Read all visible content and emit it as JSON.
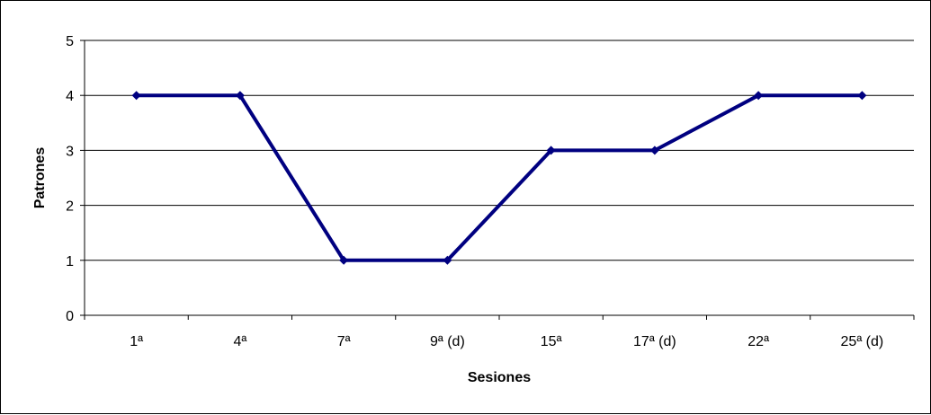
{
  "chart_data": {
    "type": "line",
    "title": "",
    "xlabel": "Sesiones",
    "ylabel": "Patrones",
    "categories": [
      "1ª",
      "4ª",
      "7ª",
      "9ª (d)",
      "15ª",
      "17ª (d)",
      "22ª",
      "25ª (d)"
    ],
    "series": [
      {
        "values": [
          4,
          4,
          1,
          1,
          3,
          3,
          4,
          4
        ]
      }
    ],
    "ylim": [
      0,
      5
    ],
    "yticks": [
      0,
      1,
      2,
      3,
      4,
      5
    ],
    "grid": true,
    "legend": "none",
    "line_color": "#000080",
    "grid_color": "#000000"
  }
}
